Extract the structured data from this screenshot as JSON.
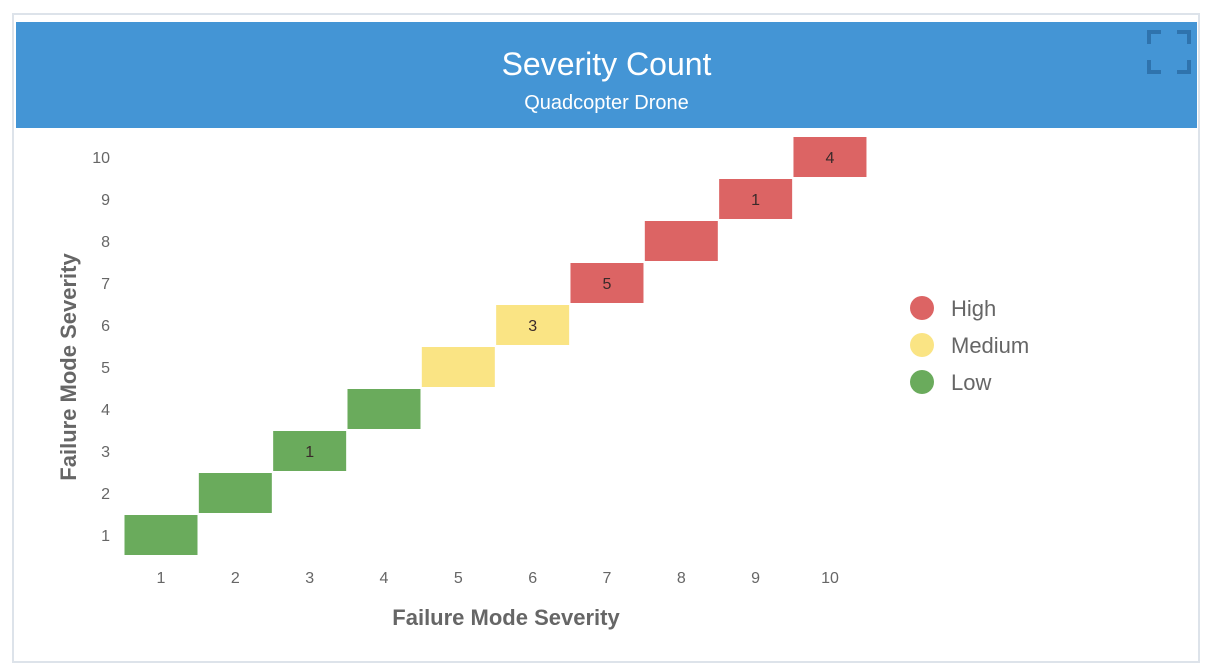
{
  "header": {
    "title": "Severity Count",
    "subtitle": "Quadcopter Drone",
    "fullscreen_icon": "expand-icon"
  },
  "chart_data": {
    "type": "heatmap",
    "title": "Severity Count",
    "subtitle": "Quadcopter Drone",
    "xlabel": "Failure Mode Severity",
    "ylabel": "Failure Mode Severity",
    "x_ticks": [
      "1",
      "2",
      "3",
      "4",
      "5",
      "6",
      "7",
      "8",
      "9",
      "10"
    ],
    "y_ticks": [
      "1",
      "2",
      "3",
      "4",
      "5",
      "6",
      "7",
      "8",
      "9",
      "10"
    ],
    "cells": [
      {
        "x": 1,
        "y": 1,
        "category": "Low",
        "label": null
      },
      {
        "x": 2,
        "y": 2,
        "category": "Low",
        "label": null
      },
      {
        "x": 3,
        "y": 3,
        "category": "Low",
        "label": "1"
      },
      {
        "x": 4,
        "y": 4,
        "category": "Low",
        "label": null
      },
      {
        "x": 5,
        "y": 5,
        "category": "Medium",
        "label": null
      },
      {
        "x": 6,
        "y": 6,
        "category": "Medium",
        "label": "3"
      },
      {
        "x": 7,
        "y": 7,
        "category": "High",
        "label": "5"
      },
      {
        "x": 8,
        "y": 8,
        "category": "High",
        "label": null
      },
      {
        "x": 9,
        "y": 9,
        "category": "High",
        "label": "1"
      },
      {
        "x": 10,
        "y": 10,
        "category": "High",
        "label": "4"
      }
    ],
    "legend": [
      {
        "name": "High",
        "color": "#dc6464"
      },
      {
        "name": "Medium",
        "color": "#fae484"
      },
      {
        "name": "Low",
        "color": "#6aab5c"
      }
    ],
    "legend_position": "right",
    "grid": false
  },
  "colors": {
    "header": "#4495d5",
    "High": "#dc6464",
    "Medium": "#fae484",
    "Low": "#6aab5c"
  }
}
